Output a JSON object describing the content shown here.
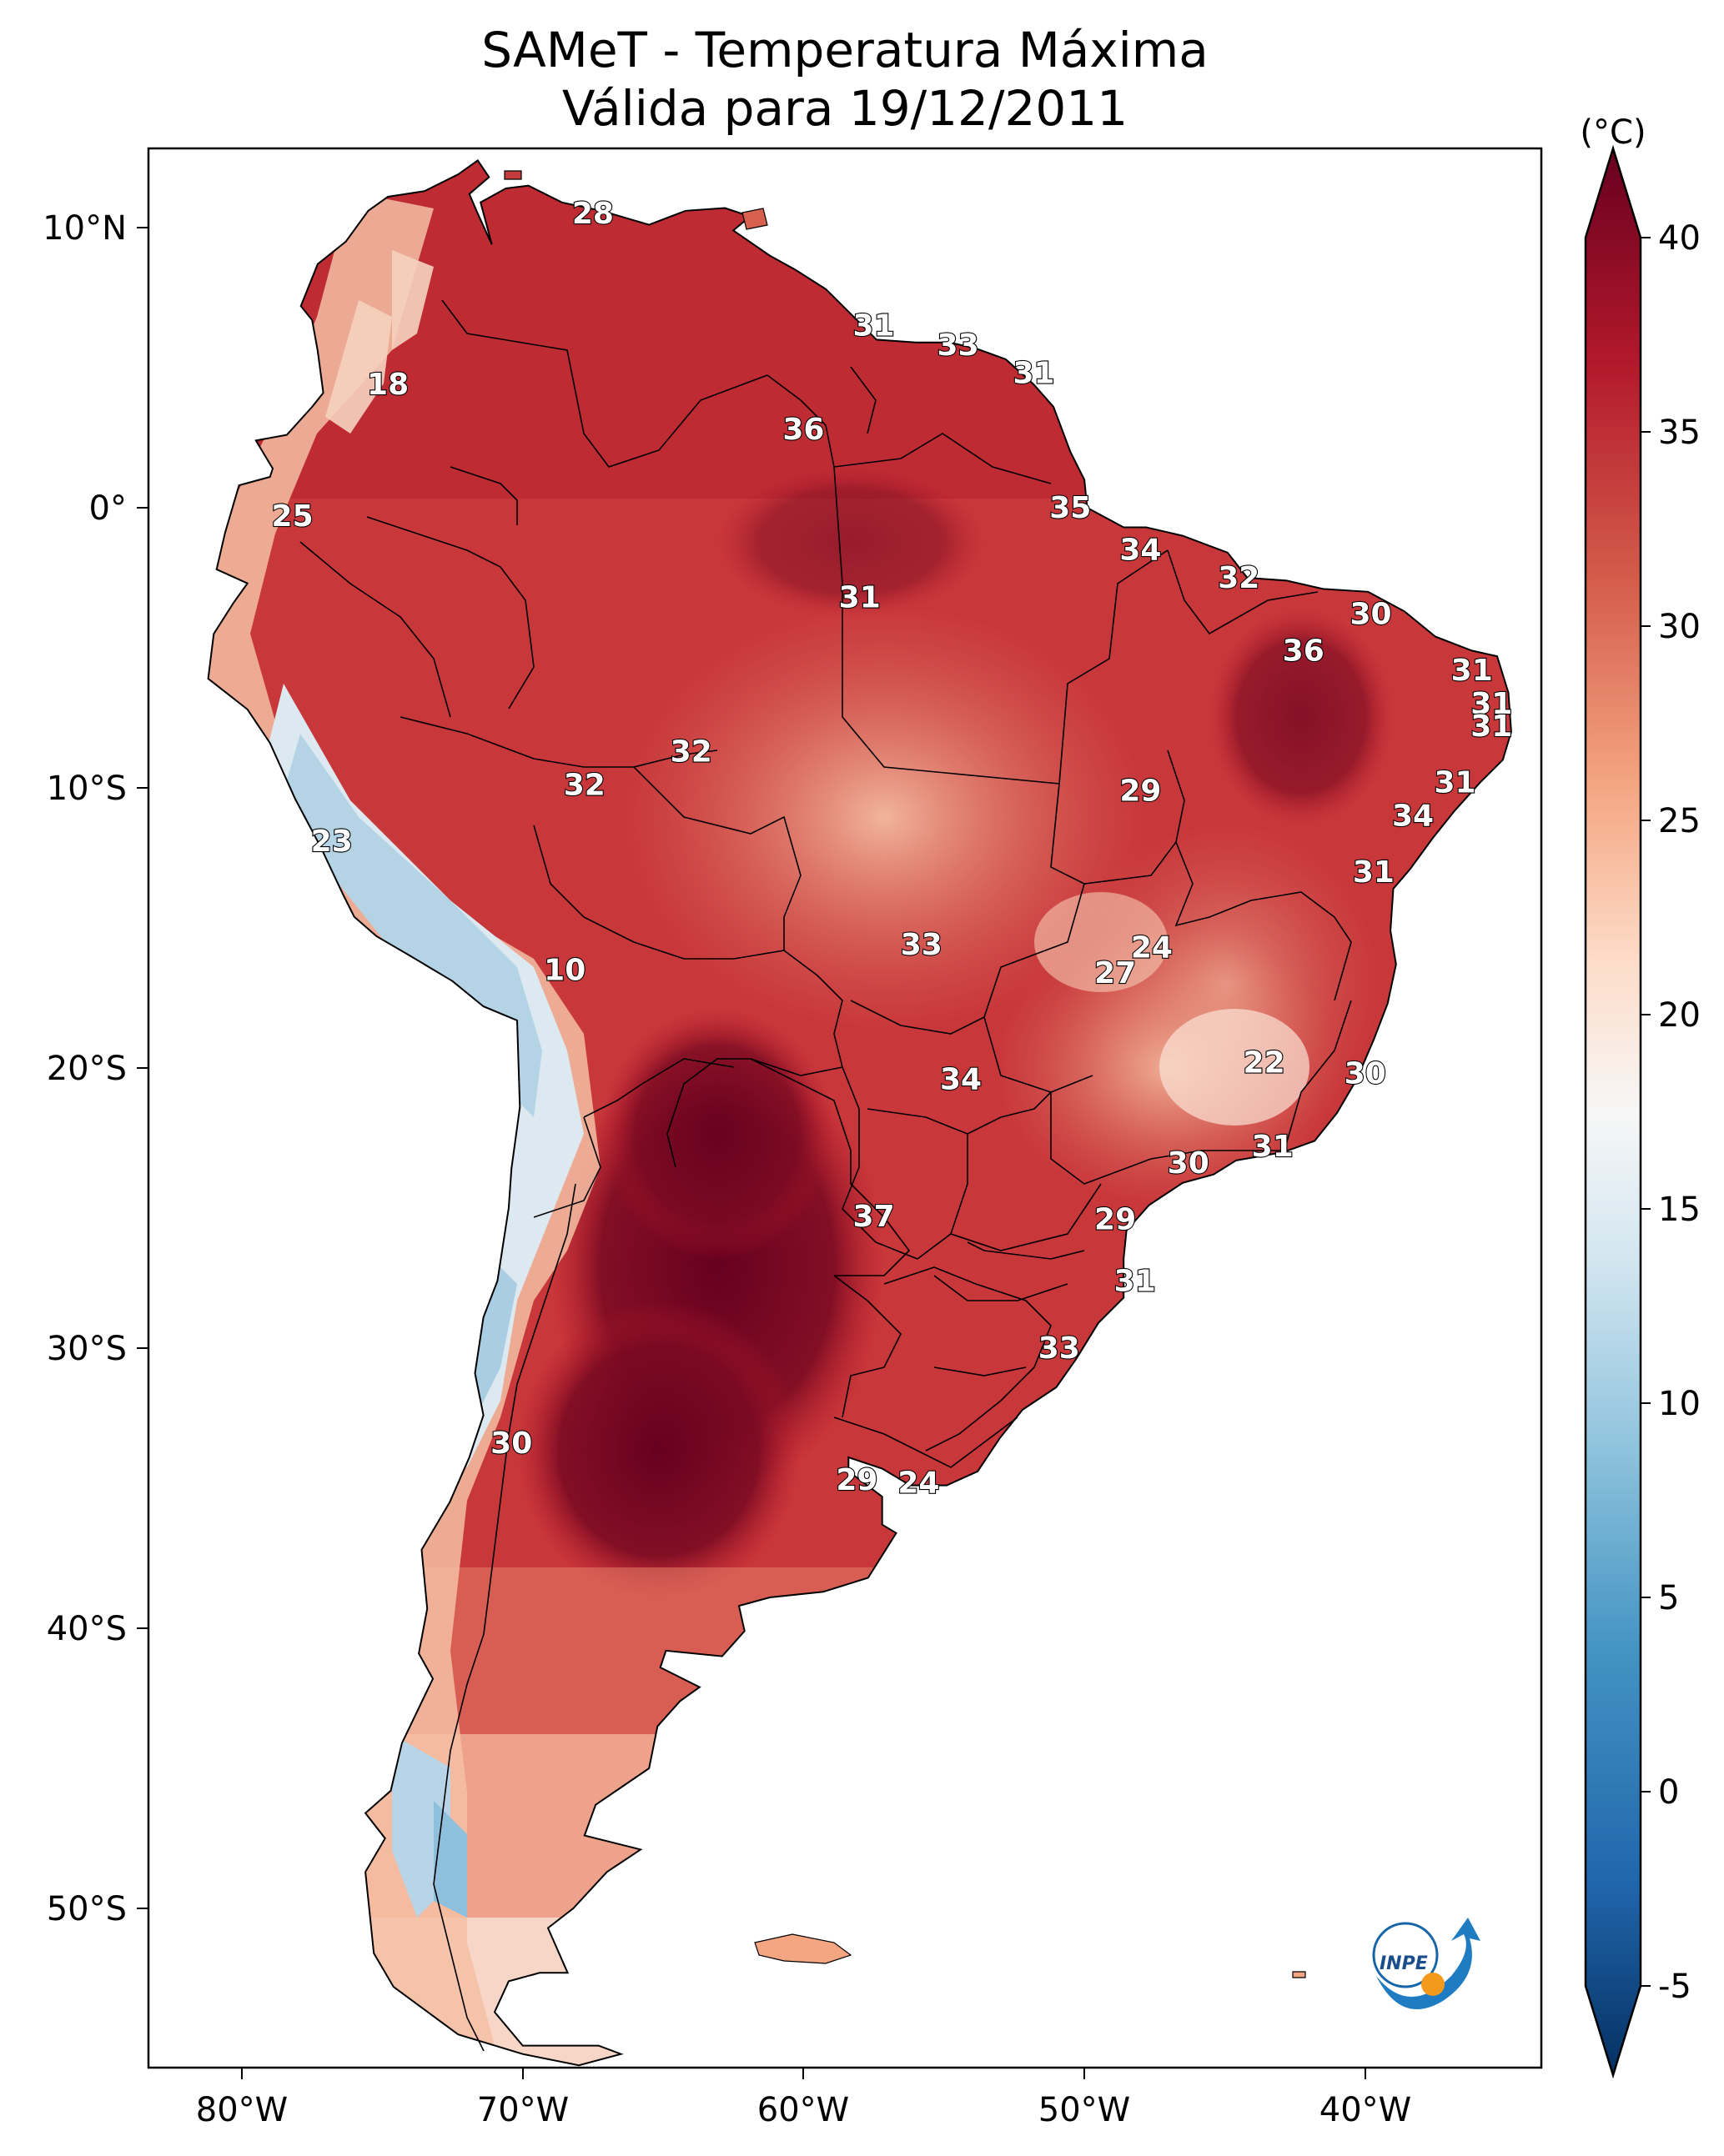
{
  "title": {
    "line1": "SAMeT - Temperatura Máxima",
    "line2": "Válida para 19/12/2011"
  },
  "axes": {
    "lon_ticks": [
      "80°W",
      "70°W",
      "60°W",
      "50°W",
      "40°W"
    ],
    "lat_ticks": [
      "10°N",
      "0°",
      "10°S",
      "20°S",
      "30°S",
      "40°S",
      "50°S"
    ]
  },
  "colorbar": {
    "unit": "(°C)",
    "ticks": [
      "40",
      "35",
      "30",
      "25",
      "20",
      "15",
      "10",
      "5",
      "0",
      "-5"
    ],
    "colors": {
      "max": "#67001f",
      "hot": "#c43c3c",
      "warm": "#f4a582",
      "neutral": "#f7f7f7",
      "cool": "#92c5de",
      "cold": "#2166ac",
      "min": "#053061"
    }
  },
  "contour_labels": [
    {
      "text": "28",
      "lon": -67.5,
      "lat": 10.5
    },
    {
      "text": "18",
      "lon": -74.8,
      "lat": 4.4
    },
    {
      "text": "31",
      "lon": -57.5,
      "lat": 6.5
    },
    {
      "text": "33",
      "lon": -54.5,
      "lat": 5.8
    },
    {
      "text": "31",
      "lon": -51.8,
      "lat": 4.8
    },
    {
      "text": "36",
      "lon": -60.0,
      "lat": 2.8
    },
    {
      "text": "25",
      "lon": -78.2,
      "lat": -0.3
    },
    {
      "text": "35",
      "lon": -50.5,
      "lat": 0.0
    },
    {
      "text": "34",
      "lon": -48.0,
      "lat": -1.5
    },
    {
      "text": "32",
      "lon": -44.5,
      "lat": -2.5
    },
    {
      "text": "31",
      "lon": -58.0,
      "lat": -3.2
    },
    {
      "text": "30",
      "lon": -39.8,
      "lat": -3.8
    },
    {
      "text": "36",
      "lon": -42.2,
      "lat": -5.1
    },
    {
      "text": "31",
      "lon": -36.2,
      "lat": -5.8
    },
    {
      "text": "31",
      "lon": -35.5,
      "lat": -7.0
    },
    {
      "text": "31",
      "lon": -35.5,
      "lat": -7.8
    },
    {
      "text": "32",
      "lon": -64.0,
      "lat": -8.7
    },
    {
      "text": "32",
      "lon": -67.8,
      "lat": -9.9
    },
    {
      "text": "29",
      "lon": -48.0,
      "lat": -10.1
    },
    {
      "text": "31",
      "lon": -36.8,
      "lat": -9.8
    },
    {
      "text": "34",
      "lon": -38.3,
      "lat": -11.0
    },
    {
      "text": "23",
      "lon": -76.8,
      "lat": -11.9
    },
    {
      "text": "31",
      "lon": -39.7,
      "lat": -13.0
    },
    {
      "text": "33",
      "lon": -55.8,
      "lat": -15.6
    },
    {
      "text": "24",
      "lon": -47.6,
      "lat": -15.7
    },
    {
      "text": "10",
      "lon": -68.5,
      "lat": -16.5
    },
    {
      "text": "27",
      "lon": -48.9,
      "lat": -16.6
    },
    {
      "text": "22",
      "lon": -43.6,
      "lat": -19.8
    },
    {
      "text": "30",
      "lon": -40.0,
      "lat": -20.2
    },
    {
      "text": "34",
      "lon": -54.4,
      "lat": -20.4
    },
    {
      "text": "31",
      "lon": -43.3,
      "lat": -22.8
    },
    {
      "text": "30",
      "lon": -46.3,
      "lat": -23.4
    },
    {
      "text": "29",
      "lon": -48.9,
      "lat": -25.4
    },
    {
      "text": "37",
      "lon": -57.5,
      "lat": -25.3
    },
    {
      "text": "31",
      "lon": -48.2,
      "lat": -27.6
    },
    {
      "text": "33",
      "lon": -50.9,
      "lat": -30.0
    },
    {
      "text": "30",
      "lon": -70.4,
      "lat": -33.4
    },
    {
      "text": "29",
      "lon": -58.1,
      "lat": -34.7
    },
    {
      "text": "24",
      "lon": -55.9,
      "lat": -34.8
    }
  ],
  "logo": {
    "text": "INPE"
  }
}
